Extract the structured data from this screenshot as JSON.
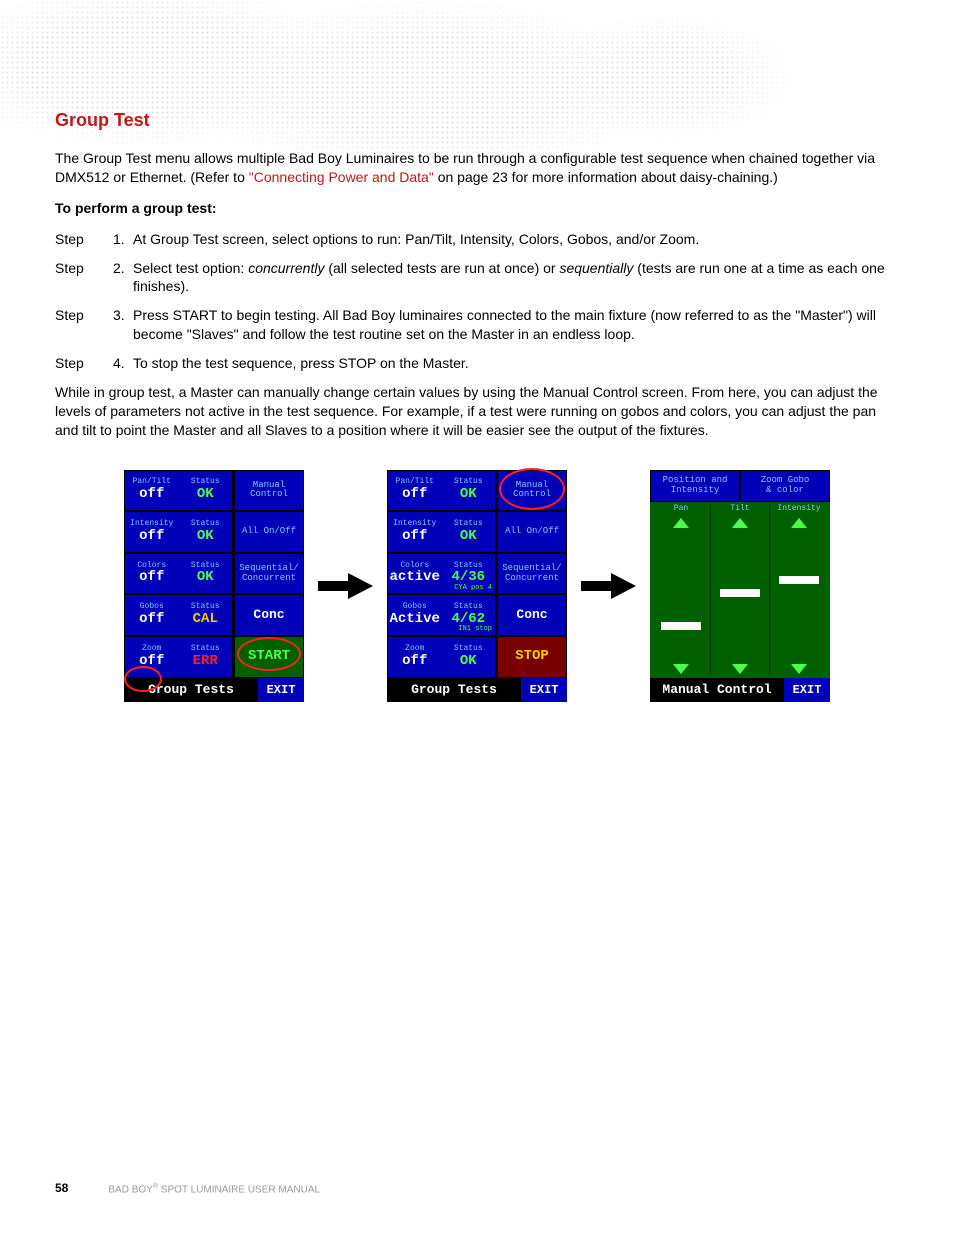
{
  "colors": {
    "heading_red": "#c01818",
    "link_red": "#c01818",
    "panel_bg": "#000000",
    "cell_blue": "#0000b8",
    "cell_green": "#006000",
    "cell_red": "#7a0000",
    "text_cyan": "#7fc9ff",
    "text_green": "#4cff4c",
    "text_yellow": "#f0d000",
    "text_red": "#ff2020",
    "footer_grey": "#999999"
  },
  "section_title": "Group Test",
  "intro_before_link": "The Group Test menu allows multiple Bad Boy Luminaires to be run through a configurable test sequence when chained together via DMX512 or Ethernet. (Refer to ",
  "intro_link": "\"Connecting Power and Data\"",
  "intro_after_link": " on page 23 for more information about daisy-chaining.)",
  "perform_label": "To perform a group test:",
  "step_word": "Step",
  "steps": [
    {
      "n": "1.",
      "body": "At Group Test screen, select options to run: Pan/Tilt, Intensity, Colors, Gobos, and/or Zoom."
    },
    {
      "n": "2.",
      "body_pre": "Select test option: ",
      "em1": "concurrently",
      "body_mid": " (all selected tests are run at once) or ",
      "em2": "sequentially",
      "body_post": " (tests are run one at a time as each one finishes)."
    },
    {
      "n": "3.",
      "body": "Press START to begin testing. All Bad Boy luminaires connected to the main fixture (now referred to as the \"Master\") will become \"Slaves\" and follow the test routine set on the Master in an endless loop."
    },
    {
      "n": "4.",
      "body": "To stop the test sequence, press STOP on the Master."
    }
  ],
  "closing": "While in group test, a Master can manually change certain values by using the Manual Control screen. From here, you can adjust the levels of parameters not active in the test sequence. For example, if a test were running on gobos and colors, you can adjust the pan and tilt to point the Master and all Slaves to a position where it will be easier see the output of the fixtures.",
  "panel1": {
    "title": "Group Tests",
    "exit": "EXIT",
    "rows": [
      {
        "l1": "Pan/Tilt",
        "l2": "Status",
        "v1": "off",
        "v2": "OK",
        "vclass": "status-ok"
      },
      {
        "l1": "Intensity",
        "l2": "Status",
        "v1": "off",
        "v2": "OK",
        "vclass": "status-ok"
      },
      {
        "l1": "Colors",
        "l2": "Status",
        "v1": "off",
        "v2": "OK",
        "vclass": "status-ok"
      },
      {
        "l1": "Gobos",
        "l2": "Status",
        "v1": "off",
        "v2": "CAL",
        "vclass": "status-cal"
      },
      {
        "l1": "Zoom",
        "l2": "Status",
        "v1": "off",
        "v2": "ERR",
        "vclass": "status-err"
      }
    ],
    "right": [
      {
        "bg": "cell-blue",
        "txt": "Manual\nControl"
      },
      {
        "bg": "cell-blue",
        "txt": "All On/Off"
      },
      {
        "bg": "cell-blue",
        "txt": "Sequential/\nConcurrent"
      },
      {
        "bg": "cell-blue",
        "txt": "Conc",
        "big": true
      },
      {
        "bg": "cell-green",
        "txt": "START",
        "big": true
      }
    ]
  },
  "panel2": {
    "title": "Group Tests",
    "exit": "EXIT",
    "rows": [
      {
        "l1": "Pan/Tilt",
        "l2": "Status",
        "v1": "off",
        "v2": "OK",
        "vclass": "status-ok"
      },
      {
        "l1": "Intensity",
        "l2": "Status",
        "v1": "off",
        "v2": "OK",
        "vclass": "status-ok"
      },
      {
        "l1": "Colors",
        "l2": "Status",
        "v1": "active",
        "v2": "4/36",
        "vclass": "status-ok",
        "sub": "CYA pos 4"
      },
      {
        "l1": "Gobos",
        "l2": "Status",
        "v1": "Active",
        "v2": "4/62",
        "vclass": "status-ok",
        "sub": "IN1 stop"
      },
      {
        "l1": "Zoom",
        "l2": "Status",
        "v1": "off",
        "v2": "OK",
        "vclass": "status-ok"
      }
    ],
    "right": [
      {
        "bg": "cell-blue",
        "txt": "Manual\nControl"
      },
      {
        "bg": "cell-blue",
        "txt": "All On/Off"
      },
      {
        "bg": "cell-blue",
        "txt": "Sequential/\nConcurrent"
      },
      {
        "bg": "cell-blue",
        "txt": "Conc",
        "big": true
      },
      {
        "bg": "cell-red",
        "txt": "STOP",
        "big": true,
        "yellow": true
      }
    ]
  },
  "panel3": {
    "title": "Manual Control",
    "exit": "EXIT",
    "headers": [
      "Position and\nIntensity",
      "Zoom Gobo\n& color"
    ],
    "cells_right_bg": "#0000b8",
    "sliders": [
      {
        "label": "Pan",
        "thumb_pct": 70
      },
      {
        "label": "Tilt",
        "thumb_pct": 45
      },
      {
        "label": "Intensity",
        "thumb_pct": 35
      }
    ]
  },
  "footer": {
    "page": "58",
    "text_before_sup": "BAD BOY",
    "sup": "®",
    "text_after_sup": " SPOT LUMINAIRE USER MANUAL"
  }
}
